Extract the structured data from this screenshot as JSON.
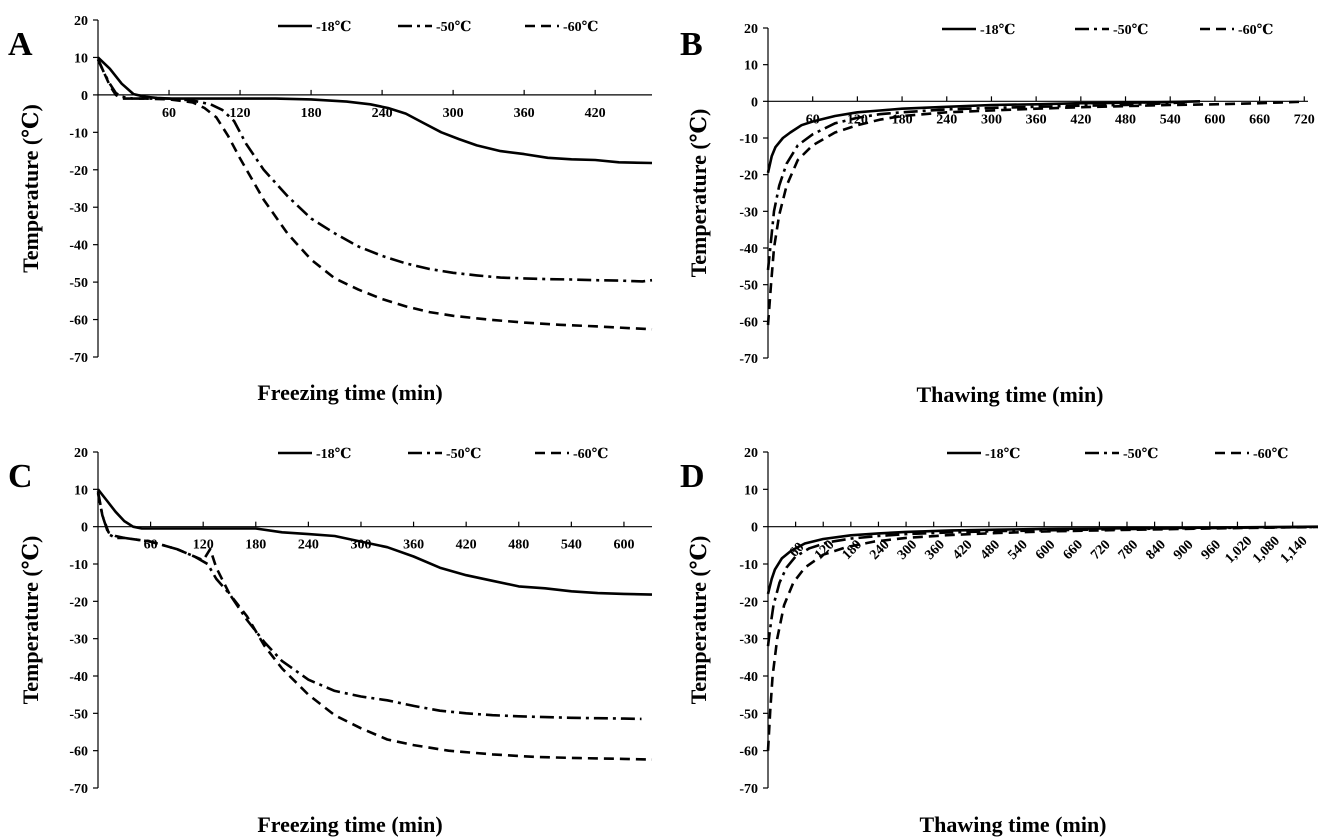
{
  "chart_data": [
    {
      "panel": "A",
      "type": "line",
      "xlabel": "Freezing time (min)",
      "ylabel": "Temperature (℃)",
      "xlim": [
        0,
        468
      ],
      "ylim": [
        -70,
        20
      ],
      "xticks": [
        {
          "v": 60,
          "label": "60"
        },
        {
          "v": 120,
          "label": "120"
        },
        {
          "v": 180,
          "label": "180"
        },
        {
          "v": 240,
          "label": "240"
        },
        {
          "v": 300,
          "label": "300"
        },
        {
          "v": 360,
          "label": "360"
        },
        {
          "v": 420,
          "label": "420"
        }
      ],
      "yticks": [
        20,
        10,
        0,
        -10,
        -20,
        -30,
        -40,
        -50,
        -60,
        -70
      ],
      "rotated_xticks": false,
      "legend": "top-right",
      "series": [
        {
          "name": "-18℃",
          "style": "solid",
          "x": [
            0,
            10,
            20,
            30,
            40,
            50,
            60,
            80,
            100,
            120,
            150,
            180,
            210,
            230,
            245,
            260,
            275,
            290,
            305,
            320,
            340,
            360,
            380,
            400,
            420,
            440,
            468
          ],
          "y": [
            10,
            7,
            3,
            0.2,
            -0.5,
            -0.8,
            -1,
            -1,
            -1,
            -1,
            -1,
            -1.2,
            -1.8,
            -2.5,
            -3.5,
            -5,
            -7.5,
            -10,
            -11.8,
            -13.5,
            -15,
            -15.8,
            -16.8,
            -17.2,
            -17.4,
            -18,
            -18.2
          ]
        },
        {
          "name": "-50℃",
          "style": "dashdot",
          "x": [
            0,
            5,
            10,
            15,
            20,
            30,
            40,
            60,
            80,
            95,
            105,
            115,
            125,
            140,
            160,
            180,
            200,
            220,
            240,
            260,
            280,
            300,
            320,
            340,
            360,
            380,
            400,
            420,
            440,
            460,
            468
          ],
          "y": [
            9.5,
            6,
            3,
            0.5,
            -0.5,
            -1,
            -1,
            -1,
            -1.5,
            -2.5,
            -4,
            -7,
            -13,
            -20,
            -27,
            -33,
            -37,
            -40.5,
            -43,
            -45,
            -46.5,
            -47.5,
            -48.2,
            -48.8,
            -49,
            -49.2,
            -49.3,
            -49.5,
            -49.6,
            -49.8,
            -49.5
          ]
        },
        {
          "name": "-60℃",
          "style": "dashed",
          "x": [
            0,
            5,
            10,
            15,
            20,
            30,
            40,
            60,
            80,
            90,
            100,
            110,
            120,
            140,
            160,
            180,
            200,
            220,
            240,
            260,
            280,
            300,
            330,
            360,
            390,
            420,
            450,
            468
          ],
          "y": [
            9.5,
            6,
            2.5,
            0,
            -1,
            -1,
            -1,
            -1.2,
            -2,
            -3.5,
            -6,
            -11,
            -17,
            -28,
            -37,
            -44,
            -49,
            -52,
            -54.5,
            -56.5,
            -58,
            -59,
            -60,
            -60.8,
            -61.4,
            -61.8,
            -62.3,
            -62.6
          ]
        }
      ]
    },
    {
      "panel": "B",
      "type": "line",
      "xlabel": "Thawing time (min)",
      "ylabel": "Temperature (℃)",
      "xlim": [
        0,
        725
      ],
      "ylim": [
        -70,
        20
      ],
      "xticks": [
        {
          "v": 60,
          "label": "60"
        },
        {
          "v": 120,
          "label": "120"
        },
        {
          "v": 180,
          "label": "180"
        },
        {
          "v": 240,
          "label": "240"
        },
        {
          "v": 300,
          "label": "300"
        },
        {
          "v": 360,
          "label": "360"
        },
        {
          "v": 420,
          "label": "420"
        },
        {
          "v": 480,
          "label": "480"
        },
        {
          "v": 540,
          "label": "540"
        },
        {
          "v": 600,
          "label": "600"
        },
        {
          "v": 660,
          "label": "660"
        },
        {
          "v": 720,
          "label": "720"
        }
      ],
      "yticks": [
        20,
        10,
        0,
        -10,
        -20,
        -30,
        -40,
        -50,
        -60,
        -70
      ],
      "rotated_xticks": false,
      "legend": "top-right",
      "series": [
        {
          "name": "-18℃",
          "style": "solid",
          "x": [
            0,
            5,
            10,
            20,
            30,
            45,
            60,
            90,
            120,
            150,
            180,
            240,
            300,
            360,
            420,
            480,
            540,
            580
          ],
          "y": [
            -19.5,
            -15,
            -12.5,
            -10,
            -8.5,
            -6.5,
            -5.5,
            -4,
            -3,
            -2.5,
            -2,
            -1.5,
            -1,
            -0.8,
            -0.5,
            -0.4,
            -0.2,
            0
          ]
        },
        {
          "name": "-50℃",
          "style": "dashdot",
          "x": [
            0,
            4,
            8,
            15,
            25,
            40,
            60,
            90,
            120,
            150,
            180,
            240,
            300,
            360,
            420,
            480,
            540,
            560
          ],
          "y": [
            -46,
            -38,
            -30,
            -23,
            -17,
            -12,
            -9,
            -6,
            -4.5,
            -3.5,
            -3,
            -2.2,
            -1.8,
            -1.5,
            -1.2,
            -1,
            -0.5,
            -0.2
          ]
        },
        {
          "name": "-60℃",
          "style": "dashed",
          "x": [
            0,
            4,
            8,
            15,
            25,
            40,
            60,
            90,
            120,
            150,
            180,
            240,
            300,
            360,
            420,
            480,
            540,
            600,
            660,
            720
          ],
          "y": [
            -61,
            -50,
            -40,
            -31,
            -23,
            -16,
            -12,
            -8.5,
            -6.5,
            -5,
            -4,
            -3,
            -2.5,
            -2,
            -1.6,
            -1.3,
            -1,
            -0.8,
            -0.5,
            -0.1
          ]
        }
      ]
    },
    {
      "panel": "C",
      "type": "line",
      "xlabel": "Freezing time (min)",
      "ylabel": "Temperature (℃)",
      "xlim": [
        0,
        632
      ],
      "ylim": [
        -70,
        20
      ],
      "xticks": [
        {
          "v": 60,
          "label": "60"
        },
        {
          "v": 120,
          "label": "120"
        },
        {
          "v": 180,
          "label": "180"
        },
        {
          "v": 240,
          "label": "240"
        },
        {
          "v": 300,
          "label": "300"
        },
        {
          "v": 360,
          "label": "360"
        },
        {
          "v": 420,
          "label": "420"
        },
        {
          "v": 480,
          "label": "480"
        },
        {
          "v": 540,
          "label": "540"
        },
        {
          "v": 600,
          "label": "600"
        }
      ],
      "yticks": [
        20,
        10,
        0,
        -10,
        -20,
        -30,
        -40,
        -50,
        -60,
        -70
      ],
      "rotated_xticks": false,
      "legend": "top-right",
      "series": [
        {
          "name": "-18℃",
          "style": "solid",
          "x": [
            0,
            10,
            20,
            30,
            40,
            50,
            70,
            100,
            150,
            180,
            210,
            240,
            270,
            300,
            330,
            360,
            390,
            420,
            450,
            480,
            510,
            540,
            570,
            600,
            632
          ],
          "y": [
            10,
            7,
            4,
            1.5,
            0,
            -0.5,
            -0.5,
            -0.5,
            -0.5,
            -0.5,
            -1.5,
            -2,
            -2.5,
            -4,
            -5.5,
            -8,
            -11,
            -13,
            -14.5,
            -16,
            -16.5,
            -17.3,
            -17.8,
            -18,
            -18.2
          ]
        },
        {
          "name": "-50℃",
          "style": "dashdot",
          "x": [
            0,
            5,
            12,
            20,
            30,
            60,
            90,
            110,
            125,
            135,
            150,
            170,
            190,
            210,
            240,
            270,
            300,
            330,
            360,
            390,
            420,
            450,
            480,
            510,
            540,
            570,
            600,
            620
          ],
          "y": [
            9.5,
            3,
            -2,
            -3,
            -3,
            -4,
            -6,
            -8,
            -10,
            -14,
            -18,
            -25,
            -31,
            -36,
            -41,
            -44,
            -45.5,
            -46.5,
            -48,
            -49.3,
            -50,
            -50.5,
            -50.8,
            -51,
            -51.2,
            -51.3,
            -51.4,
            -51.5
          ]
        },
        {
          "name": "-60℃",
          "style": "dashed",
          "x": [
            0,
            5,
            12,
            20,
            30,
            60,
            90,
            110,
            120,
            128,
            135,
            150,
            170,
            190,
            210,
            240,
            270,
            300,
            330,
            360,
            400,
            450,
            500,
            550,
            600,
            632
          ],
          "y": [
            9,
            3,
            -1.5,
            -2.5,
            -3,
            -4,
            -6,
            -8,
            -9,
            -6,
            -11,
            -18,
            -24,
            -32,
            -38,
            -45,
            -50.5,
            -54,
            -57,
            -58.5,
            -60,
            -61,
            -61.7,
            -62,
            -62.2,
            -62.4
          ]
        }
      ]
    },
    {
      "panel": "D",
      "type": "line",
      "xlabel": "Thawing time (min)",
      "ylabel": "Temperature (℃)",
      "xlim": [
        0,
        1195
      ],
      "ylim": [
        -70,
        20
      ],
      "xticks": [
        {
          "v": 60,
          "label": "60"
        },
        {
          "v": 120,
          "label": "120"
        },
        {
          "v": 180,
          "label": "180"
        },
        {
          "v": 240,
          "label": "240"
        },
        {
          "v": 300,
          "label": "300"
        },
        {
          "v": 360,
          "label": "360"
        },
        {
          "v": 420,
          "label": "420"
        },
        {
          "v": 480,
          "label": "480"
        },
        {
          "v": 540,
          "label": "540"
        },
        {
          "v": 600,
          "label": "600"
        },
        {
          "v": 660,
          "label": "660"
        },
        {
          "v": 720,
          "label": "720"
        },
        {
          "v": 780,
          "label": "780"
        },
        {
          "v": 840,
          "label": "840"
        },
        {
          "v": 900,
          "label": "900"
        },
        {
          "v": 960,
          "label": "960"
        },
        {
          "v": 1020,
          "label": "1,020"
        },
        {
          "v": 1080,
          "label": "1,080"
        },
        {
          "v": 1140,
          "label": "1,140"
        }
      ],
      "yticks": [
        20,
        10,
        0,
        -10,
        -20,
        -30,
        -40,
        -50,
        -60,
        -70
      ],
      "rotated_xticks": true,
      "legend": "top-right",
      "series": [
        {
          "name": "-18℃",
          "style": "solid",
          "x": [
            0,
            8,
            15,
            30,
            50,
            80,
            120,
            180,
            240,
            300,
            400,
            500,
            600,
            800,
            1000,
            1195
          ],
          "y": [
            -18,
            -14,
            -11.5,
            -8.5,
            -6.5,
            -4.5,
            -3.3,
            -2.3,
            -1.8,
            -1.4,
            -1,
            -0.8,
            -0.6,
            -0.4,
            -0.2,
            0
          ]
        },
        {
          "name": "-50℃",
          "style": "dashdot",
          "x": [
            0,
            6,
            12,
            25,
            40,
            60,
            90,
            130,
            180,
            240,
            300,
            400,
            500,
            600,
            800,
            1000,
            1195
          ],
          "y": [
            -32,
            -26,
            -21,
            -15,
            -11,
            -8,
            -5.8,
            -4.2,
            -3.2,
            -2.5,
            -2,
            -1.5,
            -1.2,
            -1,
            -0.6,
            -0.3,
            -0.1
          ]
        },
        {
          "name": "-60℃",
          "style": "dashed",
          "x": [
            0,
            5,
            10,
            20,
            35,
            55,
            80,
            120,
            170,
            230,
            300,
            400,
            500,
            600,
            800,
            1000,
            1195
          ],
          "y": [
            -60,
            -49,
            -40,
            -30,
            -21,
            -15,
            -11,
            -7.5,
            -5.5,
            -4,
            -3,
            -2.2,
            -1.7,
            -1.3,
            -0.8,
            -0.4,
            -0.1
          ]
        }
      ]
    }
  ]
}
